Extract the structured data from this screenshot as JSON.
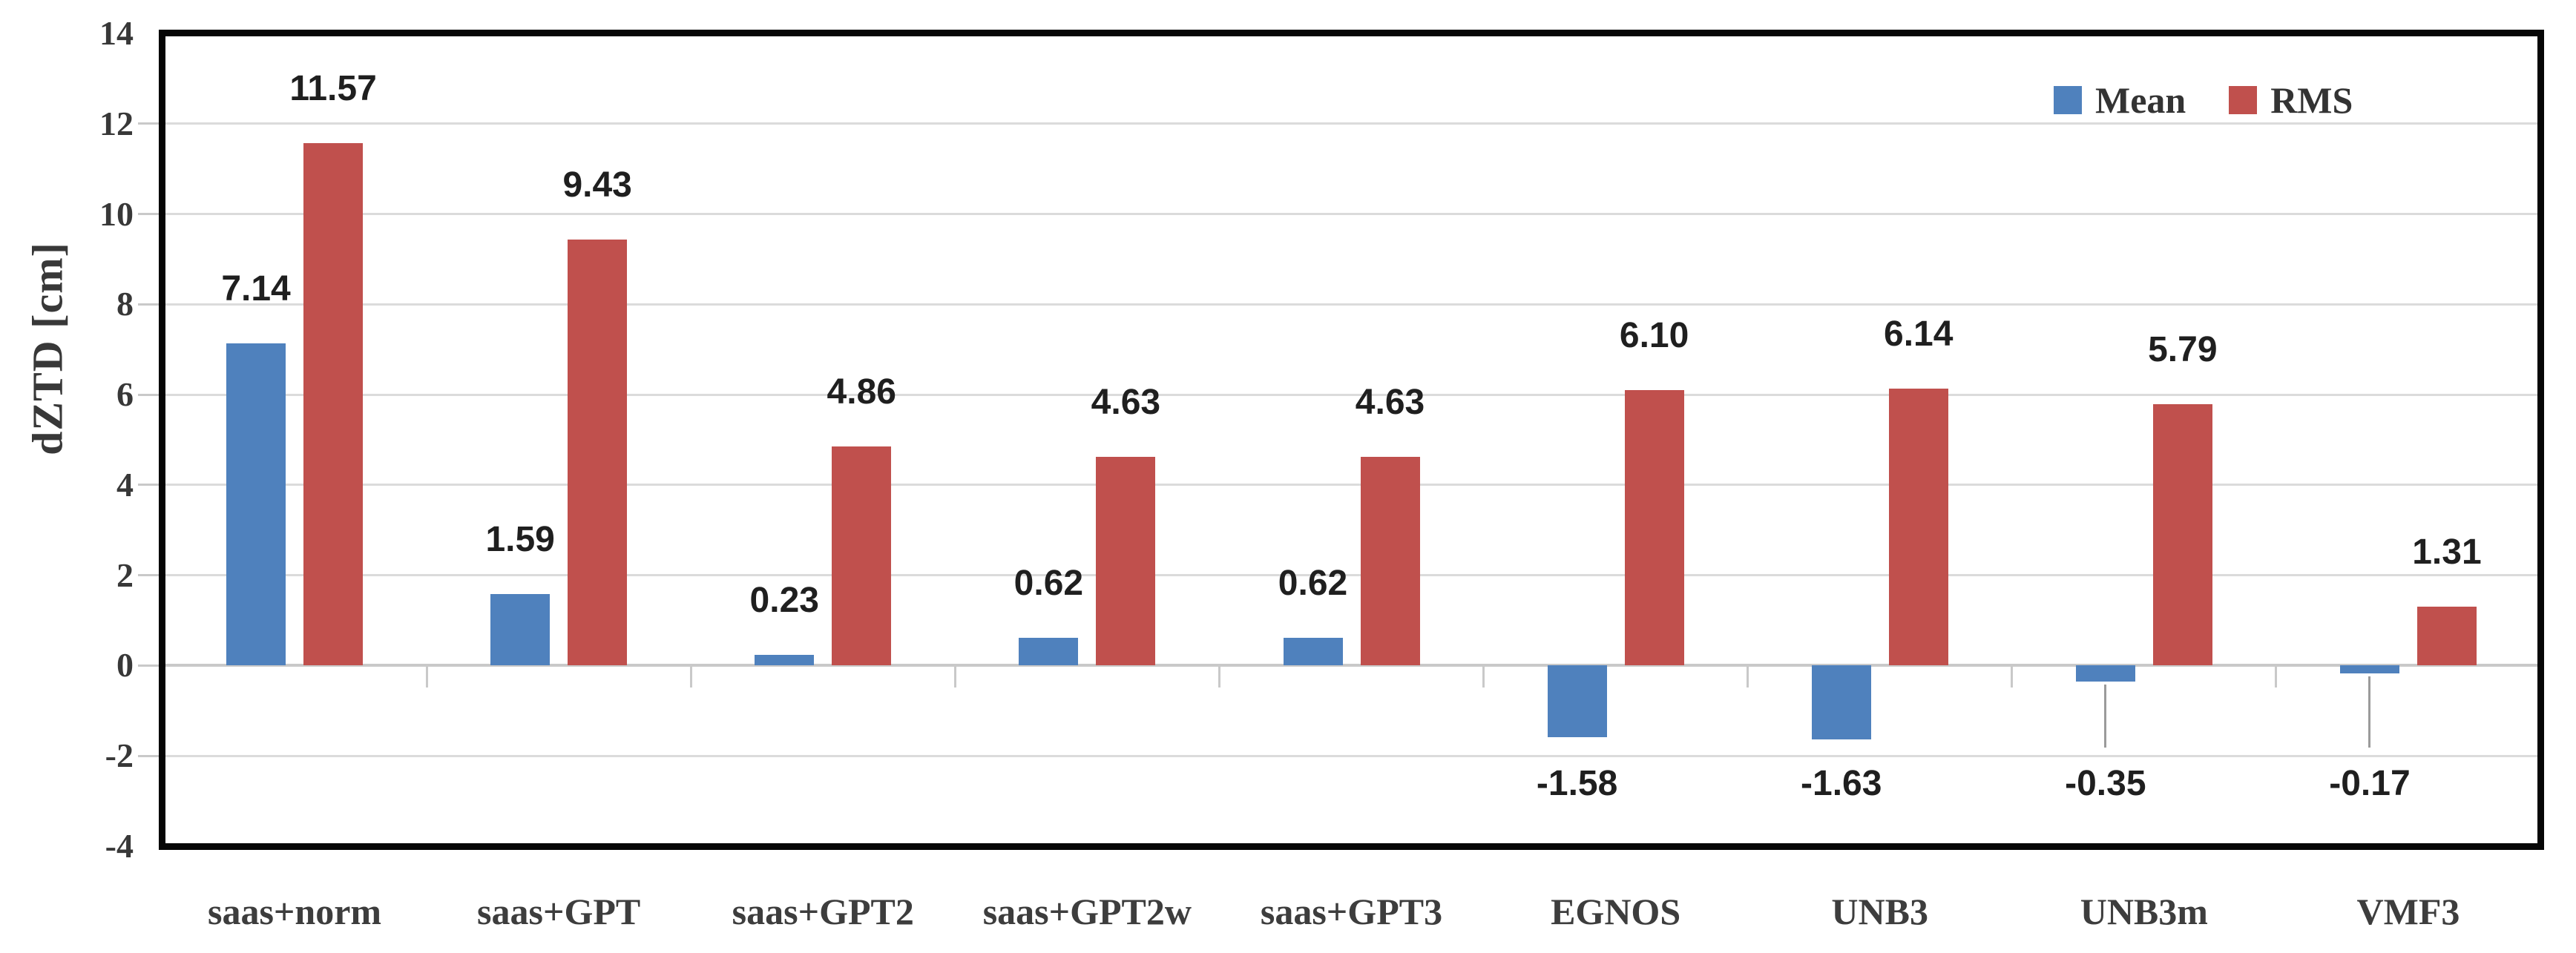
{
  "chart_data": {
    "type": "bar",
    "title": "",
    "ylabel": "dZTD [cm]",
    "xlabel": "",
    "categories": [
      "saas+norm",
      "saas+GPT",
      "saas+GPT2",
      "saas+GPT2w",
      "saas+GPT3",
      "EGNOS",
      "UNB3",
      "UNB3m",
      "VMF3"
    ],
    "series": [
      {
        "name": "Mean",
        "color": "#4F81BD",
        "values": [
          7.14,
          1.59,
          0.23,
          0.62,
          0.62,
          -1.58,
          -1.63,
          -0.35,
          -0.17
        ]
      },
      {
        "name": "RMS",
        "color": "#C0504D",
        "values": [
          11.57,
          9.43,
          4.86,
          4.63,
          4.63,
          6.1,
          6.14,
          5.79,
          1.31
        ]
      }
    ],
    "data_label_decimals": 2,
    "ylim": [
      -4,
      14
    ],
    "ytick_step": 2,
    "yticks": [
      "14",
      "12",
      "10",
      "8",
      "6",
      "4",
      "2",
      "0",
      "-2",
      "-4"
    ],
    "grid": true,
    "legend_position": "top-right",
    "legend": [
      {
        "label": "Mean",
        "color": "#4F81BD"
      },
      {
        "label": "RMS",
        "color": "#C0504D"
      }
    ]
  }
}
